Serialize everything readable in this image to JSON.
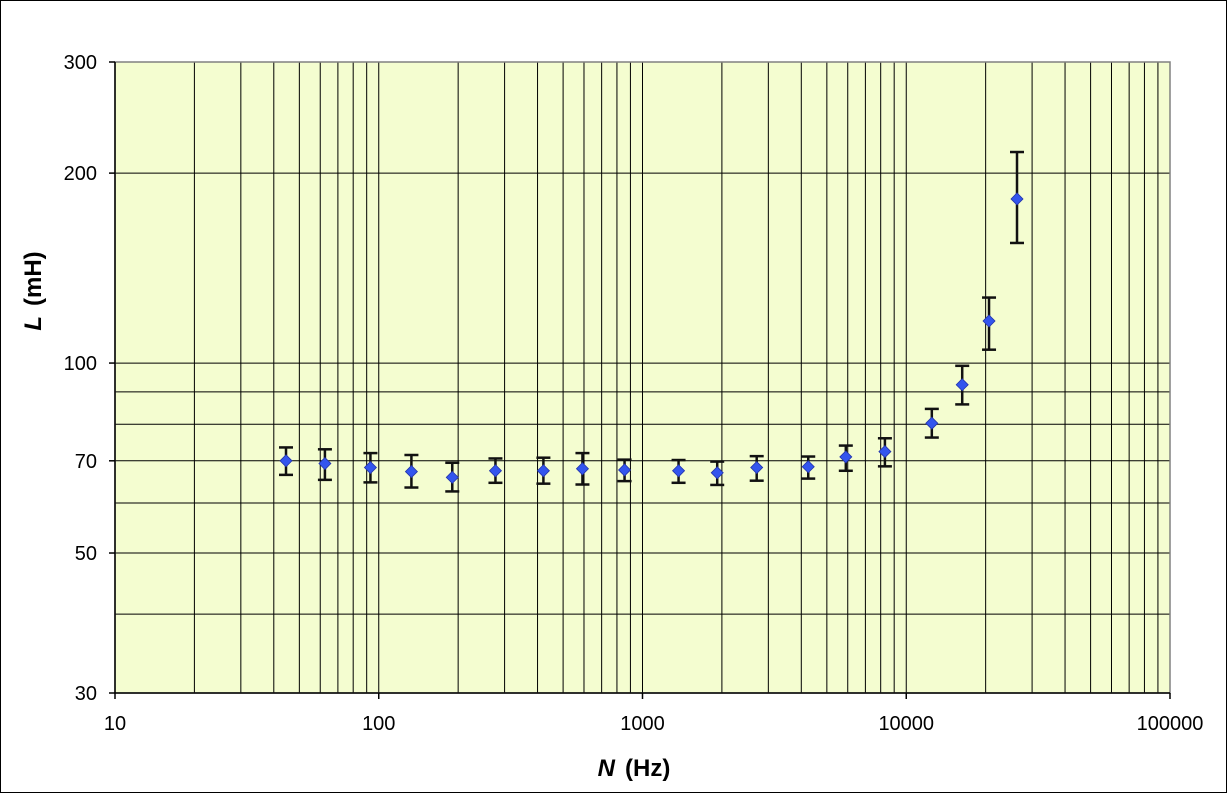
{
  "chart_data": {
    "type": "scatter",
    "title": "",
    "xlabel_var": "N",
    "xlabel_unit": "(Hz)",
    "ylabel_var": "L",
    "ylabel_unit": "(mH)",
    "xscale": "log",
    "yscale": "log",
    "xlim": [
      10,
      100000
    ],
    "ylim": [
      30,
      300
    ],
    "x_ticks": [
      10,
      100,
      1000,
      10000,
      100000
    ],
    "x_tick_labels": [
      "10",
      "100",
      "1000",
      "10000",
      "100000"
    ],
    "y_ticks": [
      30,
      50,
      70,
      100,
      200,
      300
    ],
    "y_tick_labels": [
      "30",
      "50",
      "70",
      "100",
      "200",
      "300"
    ],
    "y_gridlines": [
      30,
      40,
      50,
      60,
      70,
      80,
      90,
      100,
      200,
      300
    ],
    "grid": true,
    "legend": null,
    "plot_background": "#f4fdd0",
    "marker_color": "#3355ee",
    "series": [
      {
        "name": "L",
        "marker": "diamond",
        "x": [
          44.5,
          62.5,
          93,
          133,
          190,
          277,
          421,
          592,
          855,
          1370,
          1920,
          2710,
          4250,
          5900,
          8300,
          12500,
          16300,
          20600,
          26300
        ],
        "y": [
          70.0,
          69.3,
          68.3,
          67.3,
          65.9,
          67.5,
          67.5,
          68.0,
          67.7,
          67.5,
          67.0,
          68.3,
          68.5,
          71.0,
          72.4,
          80.3,
          92.4,
          116.6,
          182.0
        ],
        "err_low": [
          66.5,
          65.3,
          64.7,
          63.5,
          62.6,
          64.6,
          64.4,
          64.2,
          65.0,
          64.6,
          64.1,
          65.1,
          65.6,
          67.5,
          68.6,
          76.2,
          86.0,
          105.0,
          155.0
        ],
        "err_high": [
          73.5,
          73.0,
          72.0,
          71.5,
          69.5,
          70.6,
          70.8,
          72.0,
          70.3,
          70.2,
          69.8,
          71.2,
          71.1,
          74.0,
          76.0,
          84.6,
          99.0,
          127.0,
          216.0
        ]
      }
    ]
  }
}
